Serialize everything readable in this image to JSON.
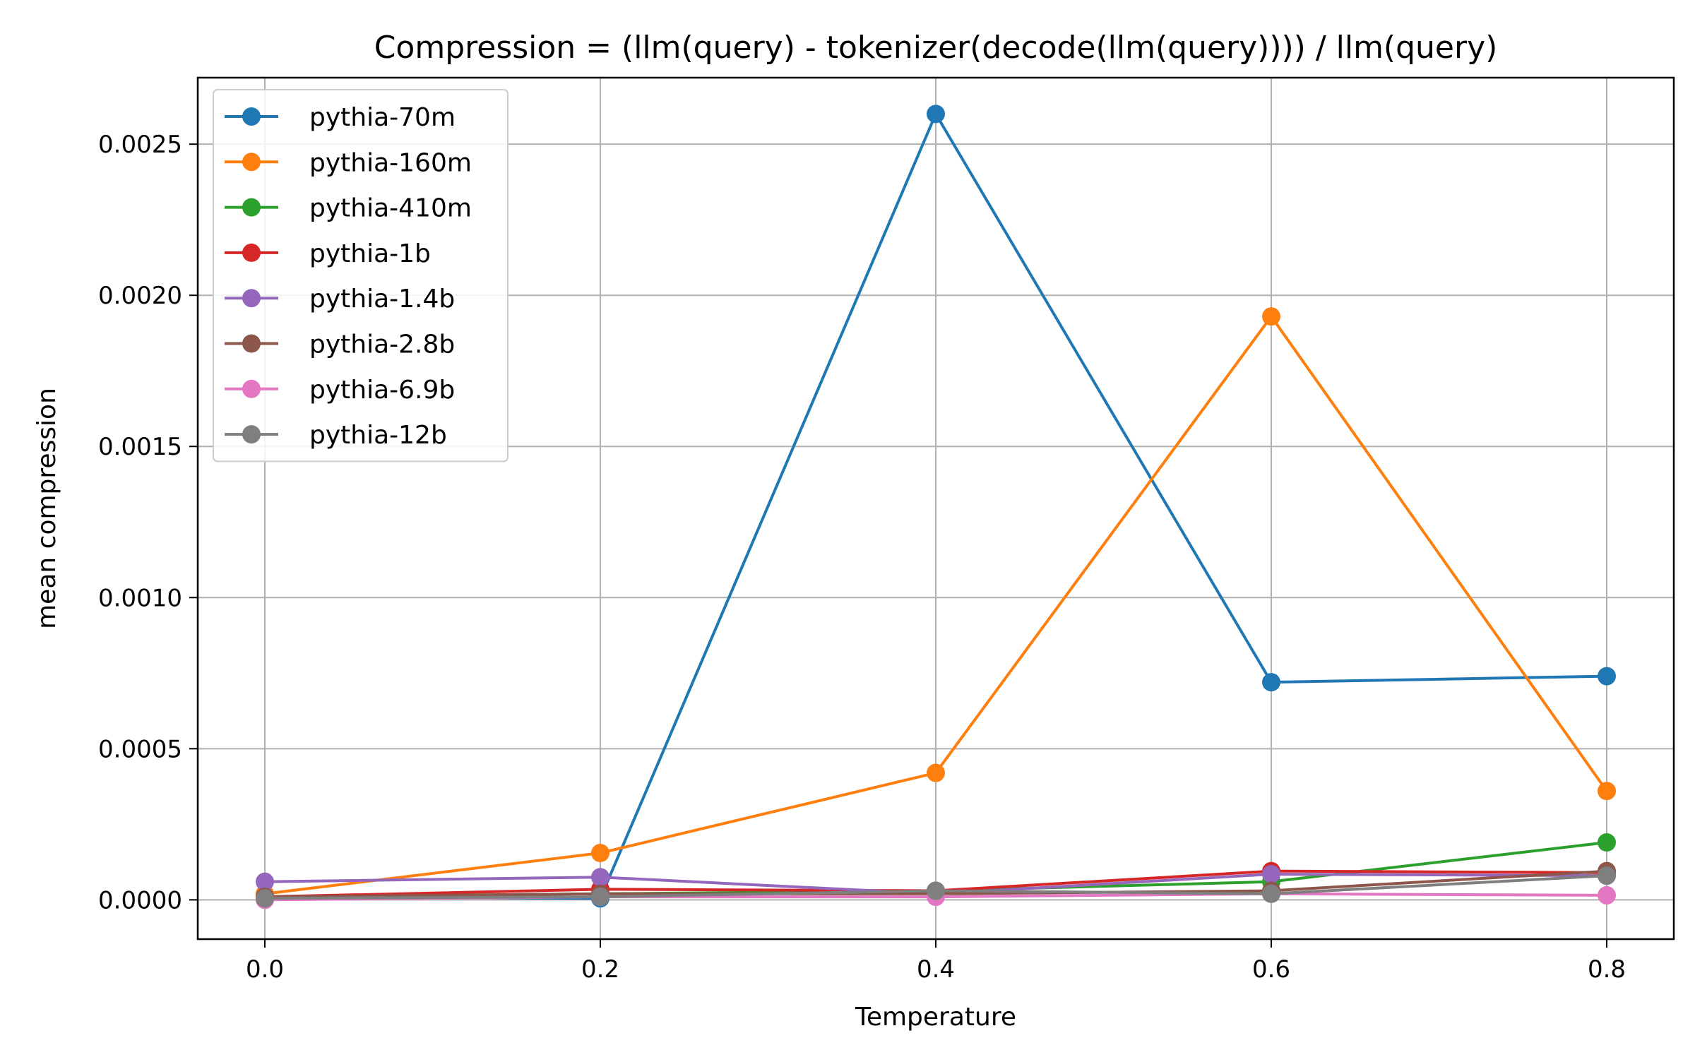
{
  "chart_data": {
    "type": "line",
    "title": "Compression = (llm(query) - tokenizer(decode(llm(query)))) / llm(query)",
    "xlabel": "Temperature",
    "ylabel": "mean compression",
    "x": [
      0.0,
      0.2,
      0.4,
      0.6,
      0.8
    ],
    "x_tick_labels": [
      "0.0",
      "0.2",
      "0.4",
      "0.6",
      "0.8"
    ],
    "y_ticks": [
      0.0,
      0.0005,
      0.001,
      0.0015,
      0.002,
      0.0025
    ],
    "y_tick_labels": [
      "0.0000",
      "0.0005",
      "0.0010",
      "0.0015",
      "0.0020",
      "0.0025"
    ],
    "xlim": [
      -0.04,
      0.84
    ],
    "ylim": [
      -0.00013,
      0.00272
    ],
    "grid": true,
    "legend_position": "upper-left",
    "series": [
      {
        "name": "pythia-70m",
        "color": "#1f77b4",
        "values": [
          1e-05,
          5e-06,
          0.0026,
          0.00072,
          0.00074
        ]
      },
      {
        "name": "pythia-160m",
        "color": "#ff7f0e",
        "values": [
          2e-05,
          0.000155,
          0.00042,
          0.00193,
          0.00036
        ]
      },
      {
        "name": "pythia-410m",
        "color": "#2ca02c",
        "values": [
          1e-05,
          2e-05,
          3e-05,
          6e-05,
          0.00019
        ]
      },
      {
        "name": "pythia-1b",
        "color": "#d62728",
        "values": [
          1e-05,
          3.5e-05,
          3e-05,
          9.5e-05,
          9e-05
        ]
      },
      {
        "name": "pythia-1.4b",
        "color": "#9467bd",
        "values": [
          6e-05,
          7.5e-05,
          2e-05,
          8.5e-05,
          8e-05
        ]
      },
      {
        "name": "pythia-2.8b",
        "color": "#8c564b",
        "values": [
          1e-05,
          2e-05,
          2e-05,
          3e-05,
          9.5e-05
        ]
      },
      {
        "name": "pythia-6.9b",
        "color": "#e377c2",
        "values": [
          0.0,
          1e-05,
          1e-05,
          2e-05,
          1.5e-05
        ]
      },
      {
        "name": "pythia-12b",
        "color": "#7f7f7f",
        "values": [
          5e-06,
          1e-05,
          3e-05,
          2e-05,
          8e-05
        ]
      }
    ]
  }
}
